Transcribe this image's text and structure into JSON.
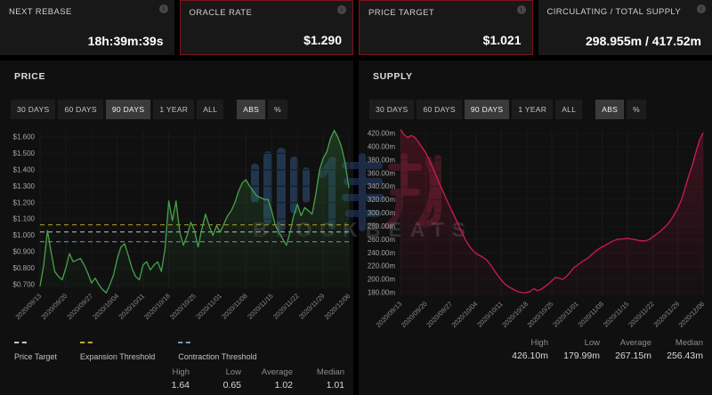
{
  "icons": {
    "info": "i"
  },
  "cards": [
    {
      "label": "NEXT REBASE",
      "value": "18h:39m:39s",
      "highlighted": false
    },
    {
      "label": "ORACLE RATE",
      "value": "$1.290",
      "highlighted": true
    },
    {
      "label": "PRICE TARGET",
      "value": "$1.021",
      "highlighted": true
    },
    {
      "label": "CIRCULATING / TOTAL SUPPLY",
      "value": "298.955m / 417.52m",
      "highlighted": false
    }
  ],
  "range_buttons": {
    "period_labels": [
      "30 DAYS",
      "60 DAYS",
      "90 DAYS",
      "1 YEAR",
      "ALL"
    ],
    "period_active": "90 DAYS",
    "mode_labels": [
      "ABS",
      "%"
    ],
    "mode_active": "ABS"
  },
  "watermark": {
    "brand_text": "BLOCKBEATS",
    "cjk_text": "律动"
  },
  "colors": {
    "page_bg": "#000000",
    "card_bg": "#181818",
    "panel_bg": "#101010",
    "highlight_border": "#7c151b",
    "price_line": "#45a24b",
    "supply_line": "#d01b4e",
    "expansion_dash": "#b9a72e",
    "target_dash": "#c6c6c6",
    "contraction_dash": "#8095a7"
  },
  "chart_data": [
    {
      "type": "line",
      "title": "PRICE",
      "x_tick_interval_days": 7,
      "x_ticks": [
        "2020/09/13",
        "2020/09/20",
        "2020/09/27",
        "2020/10/04",
        "2020/10/11",
        "2020/10/18",
        "2020/10/25",
        "2020/11/01",
        "2020/11/08",
        "2020/11/15",
        "2020/11/22",
        "2020/11/29",
        "2020/12/06"
      ],
      "y_ticks": [
        {
          "label": "$1.600",
          "value": 1.6
        },
        {
          "label": "$1.500",
          "value": 1.5
        },
        {
          "label": "$1.400",
          "value": 1.4
        },
        {
          "label": "$1.300",
          "value": 1.3
        },
        {
          "label": "$1.200",
          "value": 1.2
        },
        {
          "label": "$1.100",
          "value": 1.1
        },
        {
          "label": "$1.000",
          "value": 1.0
        },
        {
          "label": "$0.900",
          "value": 0.9
        },
        {
          "label": "$0.800",
          "value": 0.8
        },
        {
          "label": "$0.700",
          "value": 0.7
        }
      ],
      "series": [
        {
          "name": "Price",
          "color": "#45a24b",
          "values": [
            0.69,
            0.82,
            1.03,
            0.9,
            0.78,
            0.75,
            0.73,
            0.8,
            0.89,
            0.84,
            0.85,
            0.86,
            0.82,
            0.77,
            0.71,
            0.74,
            0.7,
            0.67,
            0.65,
            0.7,
            0.76,
            0.86,
            0.93,
            0.95,
            0.88,
            0.8,
            0.75,
            0.73,
            0.82,
            0.84,
            0.79,
            0.82,
            0.84,
            0.78,
            0.92,
            1.21,
            1.09,
            1.21,
            1.02,
            0.94,
            1.0,
            1.08,
            1.03,
            0.93,
            1.04,
            1.13,
            1.06,
            1.0,
            1.06,
            1.02,
            1.07,
            1.12,
            1.15,
            1.2,
            1.27,
            1.32,
            1.34,
            1.3,
            1.27,
            1.24,
            1.23,
            1.22,
            1.22,
            1.15,
            1.06,
            1.02,
            0.98,
            0.94,
            1.02,
            1.12,
            1.19,
            1.12,
            1.17,
            1.15,
            1.13,
            1.25,
            1.4,
            1.47,
            1.51,
            1.59,
            1.64,
            1.6,
            1.54,
            1.44,
            1.29
          ]
        }
      ],
      "reference_lines": [
        {
          "name": "Price Target",
          "value": 1.021,
          "color": "#c6c6c6"
        },
        {
          "name": "Expansion Threshold",
          "value": 1.065,
          "color": "#b9a72e"
        },
        {
          "name": "Contraction Threshold",
          "value": 0.962,
          "color": "#8095a7"
        }
      ],
      "legend_position": "bottom-left",
      "grid": true,
      "stats": [
        {
          "label": "High",
          "value": "1.64"
        },
        {
          "label": "Low",
          "value": "0.65"
        },
        {
          "label": "Average",
          "value": "1.02"
        },
        {
          "label": "Median",
          "value": "1.01"
        }
      ]
    },
    {
      "type": "line",
      "title": "SUPPLY",
      "x_tick_interval_days": 7,
      "x_ticks": [
        "2020/09/13",
        "2020/09/20",
        "2020/09/27",
        "2020/10/04",
        "2020/10/11",
        "2020/10/18",
        "2020/10/25",
        "2020/11/01",
        "2020/11/08",
        "2020/11/15",
        "2020/11/22",
        "2020/11/29",
        "2020/12/06"
      ],
      "y_ticks": [
        {
          "label": "420.00m",
          "value": 420
        },
        {
          "label": "400.00m",
          "value": 400
        },
        {
          "label": "380.00m",
          "value": 380
        },
        {
          "label": "360.00m",
          "value": 360
        },
        {
          "label": "340.00m",
          "value": 340
        },
        {
          "label": "320.00m",
          "value": 320
        },
        {
          "label": "300.00m",
          "value": 300
        },
        {
          "label": "280.00m",
          "value": 280
        },
        {
          "label": "260.00m",
          "value": 260
        },
        {
          "label": "240.00m",
          "value": 240
        },
        {
          "label": "220.00m",
          "value": 220
        },
        {
          "label": "200.00m",
          "value": 200
        },
        {
          "label": "180.00m",
          "value": 180
        }
      ],
      "series": [
        {
          "name": "Supply",
          "color": "#d01b4e",
          "values": [
            426,
            418,
            414,
            417,
            414,
            407,
            399,
            391,
            380,
            368,
            355,
            342,
            330,
            318,
            306,
            295,
            283,
            271,
            260,
            251,
            244,
            239,
            236,
            233,
            229,
            222,
            214,
            206,
            199,
            193,
            189,
            186,
            183,
            181,
            180,
            180,
            182,
            186,
            183,
            185,
            189,
            193,
            198,
            203,
            202,
            200,
            204,
            210,
            217,
            221,
            225,
            229,
            232,
            237,
            242,
            246,
            249,
            252,
            255,
            258,
            260,
            261,
            261,
            262,
            261,
            260,
            259,
            258,
            258,
            260,
            264,
            268,
            272,
            277,
            282,
            289,
            298,
            308,
            320,
            338,
            356,
            372,
            392,
            410,
            421
          ]
        }
      ],
      "reference_lines": [],
      "grid": true,
      "stats": [
        {
          "label": "High",
          "value": "426.10m"
        },
        {
          "label": "Low",
          "value": "179.99m"
        },
        {
          "label": "Average",
          "value": "267.15m"
        },
        {
          "label": "Median",
          "value": "256.43m"
        }
      ]
    }
  ]
}
